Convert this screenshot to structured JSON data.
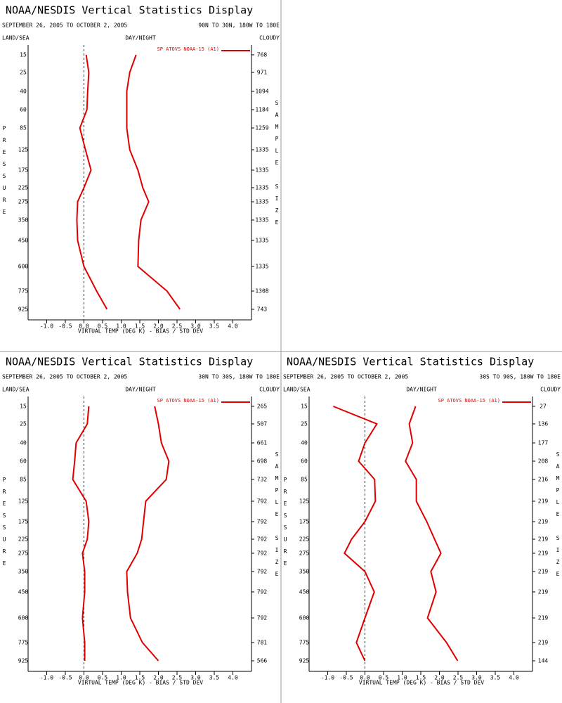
{
  "chart_data": [
    {
      "type": "line",
      "title": "NOAA/NESDIS Vertical Statistics Display",
      "subtitle": "SEPTEMBER 26, 2005 TO OCTOBER 2, 2005",
      "region": "90N TO 30N, 180W TO 180E",
      "land_sea": "LAND/SEA",
      "day_night": "DAY/NIGHT",
      "cloudy": "CLOUDY",
      "y_label": "PRESSURE",
      "y2_label": "SAMPLE SIZE",
      "x_label": "VIRTUAL TEMP (DEG K) - BIAS / STD DEV",
      "categories": [
        15,
        25,
        40,
        60,
        85,
        125,
        175,
        225,
        275,
        350,
        450,
        600,
        775,
        925
      ],
      "sample_size": [
        768,
        971,
        1094,
        1184,
        1259,
        1335,
        1335,
        1335,
        1335,
        1335,
        1335,
        1335,
        1308,
        743
      ],
      "xlim": [
        -1.5,
        4.5
      ],
      "xticks": [
        {
          "value": -1,
          "label": "-1.0"
        },
        {
          "value": -0.5,
          "label": "-0.5"
        },
        {
          "value": 0,
          "label": "0.0"
        },
        {
          "value": 0.5,
          "label": "0.5"
        },
        {
          "value": 1,
          "label": "1.0"
        },
        {
          "value": 1.5,
          "label": "1.5"
        },
        {
          "value": 2,
          "label": "2.0"
        },
        {
          "value": 2.5,
          "label": "2.5"
        },
        {
          "value": 3,
          "label": "3.0"
        },
        {
          "value": 3.5,
          "label": "3.5"
        },
        {
          "value": 4,
          "label": "4.0"
        }
      ],
      "series": [
        {
          "name": "SP ATOVS NOAA-15 (A1)",
          "color": "#e00000",
          "bias": [
            0.06,
            0.13,
            0.1,
            0.08,
            -0.11,
            0.04,
            0.19,
            0,
            -0.17,
            -0.19,
            -0.17,
            0,
            0.34,
            0.62
          ],
          "std_dev": [
            1.4,
            1.23,
            1.15,
            1.15,
            1.15,
            1.23,
            1.45,
            1.58,
            1.74,
            1.53,
            1.47,
            1.45,
            2.23,
            2.58
          ]
        }
      ]
    },
    {
      "type": "line",
      "title": "NOAA/NESDIS Vertical Statistics Display",
      "subtitle": "SEPTEMBER 26, 2005 TO OCTOBER 2, 2005",
      "region": "30N TO 30S, 180W TO 180E",
      "land_sea": "LAND/SEA",
      "day_night": "DAY/NIGHT",
      "cloudy": "CLOUDY",
      "y_label": "PRESSURE",
      "y2_label": "SAMPLE SIZE",
      "x_label": "VIRTUAL TEMP (DEG K) - BIAS / STD DEV",
      "categories": [
        15,
        25,
        40,
        60,
        85,
        125,
        175,
        225,
        275,
        350,
        450,
        600,
        775,
        925
      ],
      "sample_size": [
        265,
        507,
        661,
        698,
        732,
        792,
        792,
        792,
        792,
        792,
        792,
        792,
        781,
        566
      ],
      "xlim": [
        -1.5,
        4.5
      ],
      "xticks": [
        {
          "value": -1,
          "label": "-1.0"
        },
        {
          "value": -0.5,
          "label": "-0.5"
        },
        {
          "value": 0,
          "label": "0.0"
        },
        {
          "value": 0.5,
          "label": "0.5"
        },
        {
          "value": 1,
          "label": "1.0"
        },
        {
          "value": 1.5,
          "label": "1.5"
        },
        {
          "value": 2,
          "label": "2.0"
        },
        {
          "value": 2.5,
          "label": "2.5"
        },
        {
          "value": 3,
          "label": "3.0"
        },
        {
          "value": 3.5,
          "label": "3.5"
        },
        {
          "value": 4,
          "label": "4.0"
        }
      ],
      "series": [
        {
          "name": "SP ATOVS NOAA-15 (A1)",
          "color": "#e00000",
          "bias": [
            0.13,
            0.09,
            -0.21,
            -0.25,
            -0.3,
            0.06,
            0.13,
            0.09,
            -0.04,
            0.02,
            0.02,
            -0.04,
            0.02,
            0.02
          ],
          "std_dev": [
            1.9,
            2.0,
            2.08,
            2.28,
            2.21,
            1.66,
            1.6,
            1.55,
            1.43,
            1.15,
            1.17,
            1.25,
            1.57,
            2.0
          ]
        }
      ]
    },
    {
      "type": "line",
      "title": "NOAA/NESDIS Vertical Statistics Display",
      "subtitle": "SEPTEMBER 26, 2005 TO OCTOBER 2, 2005",
      "region": "30S TO 90S, 180W TO 180E",
      "land_sea": "LAND/SEA",
      "day_night": "DAY/NIGHT",
      "cloudy": "CLOUDY",
      "y_label": "PRESSURE",
      "y2_label": "SAMPLE SIZE",
      "x_label": "VIRTUAL TEMP (DEG K) - BIAS / STD DEV",
      "categories": [
        15,
        25,
        40,
        60,
        85,
        125,
        175,
        225,
        275,
        350,
        450,
        600,
        775,
        925
      ],
      "sample_size": [
        27,
        136,
        177,
        208,
        216,
        219,
        219,
        219,
        219,
        219,
        219,
        219,
        219,
        144
      ],
      "xlim": [
        -1.5,
        4.5
      ],
      "xticks": [
        {
          "value": -1,
          "label": "-1.0"
        },
        {
          "value": -0.5,
          "label": "-0.5"
        },
        {
          "value": 0,
          "label": "0.0"
        },
        {
          "value": 0.5,
          "label": "0.5"
        },
        {
          "value": 1,
          "label": "1.0"
        },
        {
          "value": 1.5,
          "label": "1.5"
        },
        {
          "value": 2,
          "label": "2.0"
        },
        {
          "value": 2.5,
          "label": "2.5"
        },
        {
          "value": 3,
          "label": "3.0"
        },
        {
          "value": 3.5,
          "label": "3.5"
        },
        {
          "value": 4,
          "label": "4.0"
        }
      ],
      "series": [
        {
          "name": "SP ATOVS NOAA-15 (A1)",
          "color": "#e00000",
          "bias": [
            -0.85,
            0.32,
            0,
            -0.17,
            0.26,
            0.28,
            0,
            -0.36,
            -0.55,
            0,
            0.25,
            0,
            -0.23,
            0
          ],
          "std_dev": [
            1.36,
            1.19,
            1.28,
            1.09,
            1.38,
            1.38,
            1.66,
            1.87,
            2.04,
            1.77,
            1.91,
            1.68,
            2.19,
            2.49
          ]
        }
      ]
    }
  ]
}
